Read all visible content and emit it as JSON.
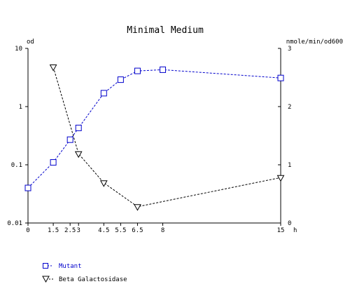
{
  "chart_data": {
    "type": "line",
    "title": "Minimal Medium",
    "x_unit": "h",
    "left_axis": {
      "label": "od",
      "scale": "log",
      "ylim": [
        0.01,
        10
      ],
      "ticks": [
        "0.01",
        "0.1",
        "1",
        "10"
      ]
    },
    "right_axis": {
      "label": "nmole/min/od600",
      "scale": "linear",
      "ylim": [
        0,
        3
      ],
      "ticks": [
        "0",
        "1",
        "2",
        "3"
      ]
    },
    "xlim": [
      0,
      15
    ],
    "x_ticks": [
      "0",
      "1.5",
      "2.5",
      "3",
      "4.5",
      "5.5",
      "6.5",
      "8",
      "15"
    ],
    "grid": false,
    "legend_position": "bottom-left",
    "series": [
      {
        "name": "Mutant",
        "axis": "left",
        "marker": "square",
        "color": "#0000cc",
        "x": [
          0,
          1.5,
          2.5,
          3,
          4.5,
          5.5,
          6.5,
          8,
          15
        ],
        "y": [
          0.04,
          0.11,
          0.27,
          0.43,
          1.7,
          2.9,
          4.1,
          4.3,
          3.1
        ]
      },
      {
        "name": "Beta Galactosidase",
        "axis": "right",
        "marker": "triangle-down",
        "color": "#000000",
        "x": [
          1.5,
          3,
          4.5,
          6.5,
          15
        ],
        "y": [
          2.68,
          1.19,
          0.69,
          0.28,
          0.78
        ]
      }
    ]
  }
}
